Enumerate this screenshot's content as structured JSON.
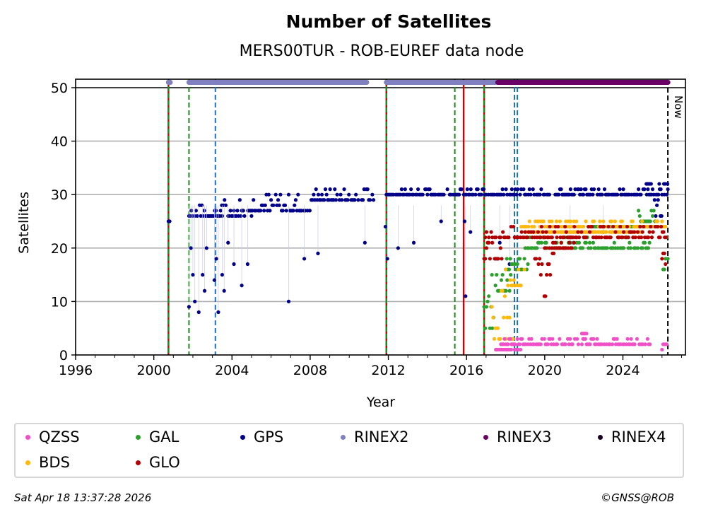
{
  "chart_data": {
    "type": "scatter",
    "title": "Number of Satellites",
    "subtitle": "MERS00TUR - ROB-EUREF data node",
    "xlabel": "Year",
    "ylabel": "Satellites",
    "xlim": [
      1996,
      2027.2
    ],
    "ylim": [
      0,
      51.5
    ],
    "xticks": [
      1996,
      2000,
      2004,
      2008,
      2012,
      2016,
      2020,
      2024
    ],
    "xtick_labels": [
      "1996",
      "2000",
      "2004",
      "2008",
      "2012",
      "2016",
      "2020",
      "2024"
    ],
    "yticks": [
      0,
      10,
      20,
      30,
      40,
      50
    ],
    "ytick_labels": [
      "0",
      "10",
      "20",
      "30",
      "40",
      "50"
    ],
    "grid": "y",
    "now_label": "Now",
    "now_year": 2026.3,
    "event_lines": [
      {
        "year": 2000.75,
        "style": "red-green-dashed"
      },
      {
        "year": 2001.8,
        "style": "green-dashed"
      },
      {
        "year": 2003.15,
        "style": "blue-dashed"
      },
      {
        "year": 2011.9,
        "style": "red-green-dashed"
      },
      {
        "year": 2015.4,
        "style": "green-dashed"
      },
      {
        "year": 2015.85,
        "style": "red-solid"
      },
      {
        "year": 2016.9,
        "style": "red-green-dashed"
      },
      {
        "year": 2018.45,
        "style": "blue-dashed"
      },
      {
        "year": 2018.6,
        "style": "blue-dashed"
      }
    ],
    "series": [
      {
        "name": "QZSS",
        "color": "#f04fc7",
        "segments": [
          {
            "from": 2017.5,
            "to": 2018.8,
            "values": [
              1
            ]
          },
          {
            "from": 2017.7,
            "to": 2025.4,
            "values": [
              2,
              3
            ]
          },
          {
            "from": 2021.9,
            "to": 2022.2,
            "values": [
              4
            ]
          },
          {
            "from": 2026.0,
            "to": 2026.3,
            "values": [
              1,
              2
            ]
          }
        ]
      },
      {
        "name": "GAL",
        "color": "#2ca02c",
        "segments": [
          {
            "from": 2016.9,
            "to": 2017.4,
            "values": [
              5,
              7,
              9,
              10,
              11
            ]
          },
          {
            "from": 2017.3,
            "to": 2018.3,
            "values": [
              12,
              13,
              14,
              15
            ]
          },
          {
            "from": 2018.0,
            "to": 2019.2,
            "values": [
              16,
              17,
              18
            ]
          },
          {
            "from": 2019.0,
            "to": 2025.5,
            "values": [
              20,
              21,
              22
            ]
          },
          {
            "from": 2022.5,
            "to": 2025.8,
            "values": [
              24
            ]
          },
          {
            "from": 2024.8,
            "to": 2025.8,
            "values": [
              25,
              26,
              27
            ]
          },
          {
            "from": 2026.0,
            "to": 2026.3,
            "values": [
              16,
              18,
              20,
              22
            ]
          }
        ]
      },
      {
        "name": "BDS",
        "color": "#ffb80c",
        "segments": [
          {
            "from": 2017.3,
            "to": 2018.4,
            "values": [
              3,
              5,
              7,
              9,
              11,
              12
            ]
          },
          {
            "from": 2018.0,
            "to": 2019.0,
            "values": [
              13,
              14,
              16,
              18
            ]
          },
          {
            "from": 2018.8,
            "to": 2026.2,
            "values": [
              24,
              25
            ]
          },
          {
            "from": 2019.0,
            "to": 2025.0,
            "values": [
              23
            ]
          }
        ]
      },
      {
        "name": "GLO",
        "color": "#b20000",
        "segments": [
          {
            "from": 2016.9,
            "to": 2026.2,
            "values": [
              22,
              23,
              24
            ]
          },
          {
            "from": 2016.9,
            "to": 2017.8,
            "values": [
              18,
              20,
              21
            ]
          },
          {
            "from": 2019.5,
            "to": 2020.5,
            "values": [
              19,
              18,
              17,
              15,
              13,
              11,
              9
            ]
          },
          {
            "from": 2020.0,
            "to": 2021.5,
            "values": [
              20,
              21
            ]
          },
          {
            "from": 2026.0,
            "to": 2026.3,
            "values": [
              17,
              18,
              19,
              20,
              21
            ]
          }
        ]
      },
      {
        "name": "GPS",
        "color": "#00008b",
        "segments": [
          {
            "from": 2000.75,
            "to": 2000.85,
            "values": [
              25,
              26,
              27
            ]
          },
          {
            "from": 2001.8,
            "to": 2003.5,
            "values": [
              26,
              27,
              28
            ]
          },
          {
            "from": 2003.2,
            "to": 2005.0,
            "values": [
              26,
              27,
              28,
              29
            ]
          },
          {
            "from": 2004.5,
            "to": 2008.0,
            "values": [
              27,
              28,
              29,
              30
            ]
          },
          {
            "from": 2008.0,
            "to": 2011.3,
            "values": [
              29,
              30,
              31
            ]
          },
          {
            "from": 2011.9,
            "to": 2026.3,
            "values": [
              30,
              31
            ]
          },
          {
            "from": 2025.2,
            "to": 2026.3,
            "values": [
              32,
              29,
              28,
              26
            ]
          }
        ],
        "outliers": [
          [
            2001.8,
            9
          ],
          [
            2001.9,
            20
          ],
          [
            2002.0,
            15
          ],
          [
            2002.1,
            10
          ],
          [
            2002.3,
            8
          ],
          [
            2002.5,
            15
          ],
          [
            2002.6,
            12
          ],
          [
            2002.7,
            20
          ],
          [
            2003.1,
            14
          ],
          [
            2003.2,
            18
          ],
          [
            2003.3,
            8
          ],
          [
            2003.5,
            15
          ],
          [
            2003.6,
            12
          ],
          [
            2003.8,
            21
          ],
          [
            2004.1,
            17
          ],
          [
            2004.5,
            13
          ],
          [
            2004.8,
            17
          ],
          [
            2006.9,
            10
          ],
          [
            2007.7,
            18
          ],
          [
            2008.4,
            19
          ],
          [
            2010.8,
            21
          ],
          [
            2011.85,
            24
          ],
          [
            2011.95,
            18
          ],
          [
            2012.5,
            20
          ],
          [
            2013.3,
            21
          ],
          [
            2014.7,
            25
          ],
          [
            2015.95,
            11
          ],
          [
            2015.9,
            25
          ],
          [
            2016.2,
            23
          ],
          [
            2017.7,
            21
          ],
          [
            2018.2,
            17
          ],
          [
            2021.3,
            21
          ],
          [
            2023.0,
            23
          ]
        ]
      },
      {
        "name": "RINEX2",
        "color": "#8080c0",
        "segments": [
          {
            "from": 2000.75,
            "to": 2000.85,
            "values": [
              51
            ]
          },
          {
            "from": 2001.8,
            "to": 2010.9,
            "values": [
              51
            ]
          },
          {
            "from": 2011.9,
            "to": 2017.5,
            "values": [
              51
            ]
          }
        ]
      },
      {
        "name": "RINEX3",
        "color": "#6a0066",
        "segments": [
          {
            "from": 2017.6,
            "to": 2026.3,
            "values": [
              51
            ]
          }
        ]
      },
      {
        "name": "RINEX4",
        "color": "#1b0022",
        "segments": []
      }
    ]
  },
  "legend": {
    "items": [
      {
        "label": "QZSS",
        "color": "#f04fc7"
      },
      {
        "label": "GAL",
        "color": "#2ca02c"
      },
      {
        "label": "GPS",
        "color": "#00008b"
      },
      {
        "label": "RINEX2",
        "color": "#8080c0"
      },
      {
        "label": "RINEX3",
        "color": "#6a0066"
      },
      {
        "label": "RINEX4",
        "color": "#1b0022"
      },
      {
        "label": "BDS",
        "color": "#ffb80c"
      },
      {
        "label": "GLO",
        "color": "#b20000"
      }
    ]
  },
  "footer": {
    "timestamp": "Sat Apr 18 13:37:28 2026",
    "credit": "©GNSS@ROB"
  }
}
